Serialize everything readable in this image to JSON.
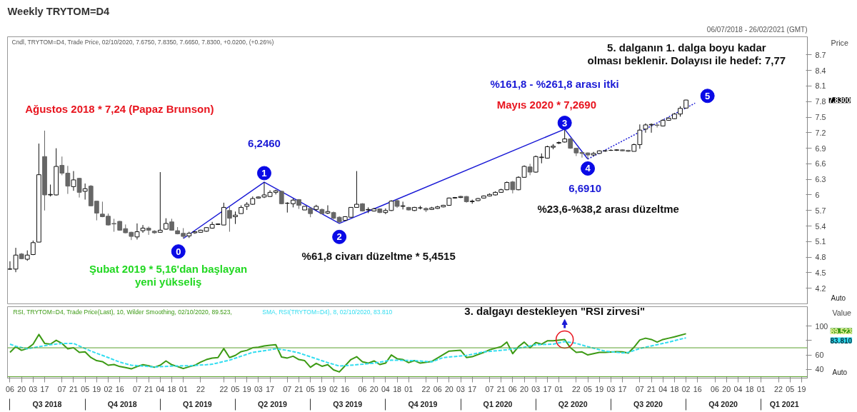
{
  "chart_data": [
    {
      "type": "candlestick",
      "title": "Weekly TRYTOM=D4",
      "subtitle": "Cndl, TRYTOM=D4, Trade Price, 02/10/2020, 7.6750, 7.8350, 7.6650, 7.8300, +0.0200, (+0.26%)",
      "ylabel": "Price",
      "x": [
        "2018-07-06",
        "2018-07-13",
        "2018-07-20",
        "2018-07-27",
        "2018-08-03",
        "2018-08-10",
        "2018-08-17",
        "2018-08-24",
        "2018-08-31",
        "2018-09-07",
        "2018-09-14",
        "2018-09-21",
        "2018-09-28",
        "2018-10-05",
        "2018-10-12",
        "2018-10-19",
        "2018-10-26",
        "2018-11-02",
        "2018-11-09",
        "2018-11-16",
        "2018-11-23",
        "2018-11-30",
        "2018-12-07",
        "2018-12-14",
        "2018-12-21",
        "2018-12-28",
        "2019-01-04",
        "2019-01-11",
        "2019-01-18",
        "2019-01-25",
        "2019-02-01",
        "2019-02-08",
        "2019-02-15",
        "2019-02-22",
        "2019-03-01",
        "2019-03-08",
        "2019-03-15",
        "2019-03-22",
        "2019-03-29",
        "2019-04-05",
        "2019-04-12",
        "2019-04-19",
        "2019-04-26",
        "2019-05-03",
        "2019-05-10",
        "2019-05-17",
        "2019-05-24",
        "2019-05-31",
        "2019-06-07",
        "2019-06-14",
        "2019-06-21",
        "2019-06-28",
        "2019-07-05",
        "2019-07-12",
        "2019-07-19",
        "2019-07-26",
        "2019-08-02",
        "2019-08-09",
        "2019-08-16",
        "2019-08-23",
        "2019-08-30",
        "2019-09-06",
        "2019-09-13",
        "2019-09-20",
        "2019-09-27",
        "2019-10-04",
        "2019-10-11",
        "2019-10-18",
        "2019-10-25",
        "2019-11-01",
        "2019-11-08",
        "2019-11-15",
        "2019-11-22",
        "2019-11-29",
        "2019-12-06",
        "2019-12-13",
        "2019-12-20",
        "2019-12-27",
        "2020-01-03",
        "2020-01-10",
        "2020-01-17",
        "2020-01-24",
        "2020-01-31",
        "2020-02-07",
        "2020-02-14",
        "2020-02-21",
        "2020-02-28",
        "2020-03-06",
        "2020-03-13",
        "2020-03-20",
        "2020-03-27",
        "2020-04-03",
        "2020-04-10",
        "2020-04-17",
        "2020-04-24",
        "2020-05-01",
        "2020-05-08",
        "2020-05-15",
        "2020-05-22",
        "2020-05-29",
        "2020-06-05",
        "2020-06-12",
        "2020-06-19",
        "2020-06-26",
        "2020-07-03",
        "2020-07-10",
        "2020-07-17",
        "2020-07-24",
        "2020-07-31",
        "2020-08-07",
        "2020-08-14",
        "2020-08-21",
        "2020-08-28",
        "2020-09-04",
        "2020-09-11",
        "2020-09-18",
        "2020-09-25",
        "2020-10-02"
      ],
      "ohlc": [
        [
          4.57,
          4.72,
          4.56,
          4.57
        ],
        [
          4.57,
          4.98,
          4.51,
          4.84
        ],
        [
          4.86,
          4.88,
          4.76,
          4.77
        ],
        [
          4.76,
          4.93,
          4.73,
          4.84
        ],
        [
          4.85,
          5.12,
          4.84,
          5.08
        ],
        [
          5.09,
          6.99,
          5.09,
          6.39
        ],
        [
          6.74,
          7.24,
          5.7,
          6.0
        ],
        [
          6.0,
          6.2,
          5.97,
          6.01
        ],
        [
          6.0,
          6.9,
          5.99,
          6.55
        ],
        [
          6.57,
          6.74,
          6.38,
          6.42
        ],
        [
          6.42,
          6.56,
          6.02,
          6.17
        ],
        [
          6.16,
          6.46,
          6.08,
          6.29
        ],
        [
          6.32,
          6.33,
          5.95,
          6.05
        ],
        [
          6.07,
          6.22,
          5.91,
          6.12
        ],
        [
          6.17,
          6.19,
          5.78,
          5.79
        ],
        [
          5.88,
          5.88,
          5.51,
          5.65
        ],
        [
          5.63,
          5.87,
          5.57,
          5.58
        ],
        [
          5.59,
          5.64,
          5.41,
          5.42
        ],
        [
          5.45,
          5.54,
          5.29,
          5.44
        ],
        [
          5.49,
          5.5,
          5.31,
          5.32
        ],
        [
          5.35,
          5.43,
          5.26,
          5.27
        ],
        [
          5.28,
          5.29,
          5.13,
          5.2
        ],
        [
          5.19,
          5.45,
          5.14,
          5.29
        ],
        [
          5.31,
          5.42,
          5.27,
          5.36
        ],
        [
          5.36,
          5.39,
          5.23,
          5.32
        ],
        [
          5.3,
          5.32,
          5.25,
          5.27
        ],
        [
          5.28,
          6.44,
          5.27,
          5.32
        ],
        [
          5.34,
          5.55,
          5.33,
          5.45
        ],
        [
          5.48,
          5.54,
          5.31,
          5.32
        ],
        [
          5.31,
          5.38,
          5.24,
          5.25
        ],
        [
          5.26,
          5.36,
          5.16,
          5.2
        ],
        [
          5.21,
          5.29,
          5.17,
          5.26
        ],
        [
          5.27,
          5.3,
          5.25,
          5.29
        ],
        [
          5.28,
          5.33,
          5.27,
          5.32
        ],
        [
          5.3,
          5.38,
          5.29,
          5.37
        ],
        [
          5.36,
          5.48,
          5.35,
          5.43
        ],
        [
          5.43,
          5.45,
          5.42,
          5.44
        ],
        [
          5.42,
          5.85,
          5.42,
          5.76
        ],
        [
          5.7,
          5.78,
          5.29,
          5.55
        ],
        [
          5.58,
          5.68,
          5.44,
          5.61
        ],
        [
          5.64,
          5.8,
          5.64,
          5.76
        ],
        [
          5.78,
          5.86,
          5.71,
          5.82
        ],
        [
          5.82,
          5.97,
          5.81,
          5.93
        ],
        [
          5.94,
          5.97,
          5.93,
          5.96
        ],
        [
          5.96,
          6.246,
          5.94,
          6.0
        ],
        [
          5.97,
          6.09,
          5.96,
          6.05
        ],
        [
          6.05,
          6.1,
          6.01,
          6.08
        ],
        [
          6.07,
          6.08,
          5.82,
          5.83
        ],
        [
          5.84,
          5.86,
          5.66,
          5.84
        ],
        [
          5.83,
          5.93,
          5.76,
          5.9
        ],
        [
          5.91,
          5.92,
          5.73,
          5.8
        ],
        [
          5.71,
          5.78,
          5.71,
          5.78
        ],
        [
          5.74,
          5.76,
          5.57,
          5.64
        ],
        [
          5.72,
          5.81,
          5.69,
          5.78
        ],
        [
          5.72,
          5.74,
          5.63,
          5.64
        ],
        [
          5.65,
          5.8,
          5.63,
          5.68
        ],
        [
          5.66,
          5.68,
          5.53,
          5.55
        ],
        [
          5.57,
          5.59,
          5.4515,
          5.48
        ],
        [
          5.51,
          5.59,
          5.5,
          5.58
        ],
        [
          5.57,
          5.76,
          5.56,
          5.76
        ],
        [
          5.76,
          6.46,
          5.76,
          5.82
        ],
        [
          5.83,
          5.84,
          5.68,
          5.69
        ],
        [
          5.71,
          5.76,
          5.65,
          5.72
        ],
        [
          5.69,
          5.75,
          5.68,
          5.73
        ],
        [
          5.73,
          5.74,
          5.65,
          5.66
        ],
        [
          5.66,
          5.74,
          5.63,
          5.7
        ],
        [
          5.7,
          5.9,
          5.69,
          5.88
        ],
        [
          5.89,
          5.91,
          5.75,
          5.78
        ],
        [
          5.78,
          5.87,
          5.72,
          5.79
        ],
        [
          5.76,
          5.77,
          5.7,
          5.71
        ],
        [
          5.7,
          5.77,
          5.69,
          5.76
        ],
        [
          5.75,
          5.79,
          5.72,
          5.75
        ],
        [
          5.74,
          5.76,
          5.67,
          5.71
        ],
        [
          5.72,
          5.77,
          5.71,
          5.75
        ],
        [
          5.74,
          5.79,
          5.73,
          5.77
        ],
        [
          5.77,
          5.81,
          5.76,
          5.8
        ],
        [
          5.8,
          5.95,
          5.79,
          5.94
        ],
        [
          5.94,
          5.96,
          5.93,
          5.95
        ],
        [
          5.95,
          5.98,
          5.94,
          5.97
        ],
        [
          5.97,
          5.98,
          5.85,
          5.87
        ],
        [
          5.87,
          5.91,
          5.83,
          5.88
        ],
        [
          5.89,
          5.94,
          5.88,
          5.93
        ],
        [
          5.94,
          5.99,
          5.93,
          5.98
        ],
        [
          5.98,
          6.03,
          5.97,
          6.01
        ],
        [
          6.0,
          6.07,
          5.99,
          6.05
        ],
        [
          6.05,
          6.12,
          6.04,
          6.1
        ],
        [
          6.1,
          6.26,
          6.09,
          6.24
        ],
        [
          6.25,
          6.27,
          6.03,
          6.1
        ],
        [
          6.1,
          6.36,
          6.09,
          6.34
        ],
        [
          6.34,
          6.57,
          6.33,
          6.55
        ],
        [
          6.54,
          6.6,
          6.38,
          6.44
        ],
        [
          6.44,
          6.76,
          6.43,
          6.74
        ],
        [
          6.72,
          6.8,
          6.61,
          6.73
        ],
        [
          6.71,
          6.95,
          6.7,
          6.93
        ],
        [
          6.92,
          6.98,
          6.88,
          6.94
        ],
        [
          7.0,
          7.03,
          6.98,
          7.01
        ],
        [
          7.02,
          7.269,
          7.01,
          7.08
        ],
        [
          7.08,
          7.1,
          6.89,
          6.9
        ],
        [
          6.9,
          6.91,
          6.75,
          6.81
        ],
        [
          6.82,
          6.83,
          6.72,
          6.8
        ],
        [
          6.81,
          6.82,
          6.691,
          6.77
        ],
        [
          6.77,
          6.83,
          6.75,
          6.8
        ],
        [
          6.8,
          6.86,
          6.79,
          6.85
        ],
        [
          6.85,
          6.87,
          6.83,
          6.85
        ],
        [
          6.86,
          6.88,
          6.85,
          6.86
        ],
        [
          6.86,
          6.88,
          6.85,
          6.87
        ],
        [
          6.87,
          6.88,
          6.84,
          6.85
        ],
        [
          6.86,
          6.87,
          6.83,
          6.84
        ],
        [
          6.84,
          6.99,
          6.84,
          6.97
        ],
        [
          6.97,
          7.36,
          6.89,
          7.25
        ],
        [
          7.27,
          7.38,
          7.2,
          7.35
        ],
        [
          7.35,
          7.38,
          7.2,
          7.36
        ],
        [
          7.35,
          7.37,
          7.3,
          7.34
        ],
        [
          7.33,
          7.46,
          7.32,
          7.44
        ],
        [
          7.44,
          7.5,
          7.43,
          7.48
        ],
        [
          7.47,
          7.58,
          7.46,
          7.56
        ],
        [
          7.56,
          7.71,
          7.51,
          7.67
        ],
        [
          7.675,
          7.835,
          7.665,
          7.83
        ]
      ],
      "series": [
        {
          "type": "line",
          "color": "#1a1ad6",
          "line_style": "solid",
          "x": [
            "2019-02-01",
            "2019-05-10",
            "2019-08-09",
            "2020-05-08",
            "2020-06-05"
          ],
          "values": [
            5.16,
            6.246,
            5.4515,
            7.269,
            6.691
          ]
        },
        {
          "type": "line",
          "color": "#1a1ad6",
          "line_style": "dotted",
          "x": [
            "2020-06-05",
            "2020-10-13"
          ],
          "values": [
            6.691,
            7.77
          ]
        }
      ],
      "xlim": [
        "2018-07-03",
        "2021-02-26"
      ],
      "ylim": [
        3.9,
        9.05
      ],
      "yticks": [
        4.2,
        4.5,
        4.8,
        5.1,
        5.4,
        5.7,
        6,
        6.3,
        6.6,
        6.9,
        7.2,
        7.5,
        7.8,
        8.1,
        8.4,
        8.7
      ],
      "tick_labels": "y",
      "marker": "none",
      "annotations": [
        "Ağustos 2018 * 7,24 (Papaz Brunson)",
        "6,2460",
        "Şubat 2019 * 5,16'dan başlayan\nyeni yükseliş",
        "%61,8 civarı düzeltme * 5,4515",
        "%161,8 - %261,8 arası itki",
        "Mayıs 2020 * 7,2690",
        "6,6910",
        "%23,6-%38,2 arası düzeltme",
        "5. dalganın 1. dalga boyu kadar\nolması beklenir. Dolayısı ile hedef: 7,77",
        {
          "text": "0",
          "x": "2019-01-26",
          "y": 4.91
        },
        {
          "text": "1",
          "x": "2019-05-10",
          "y": 6.42
        },
        {
          "text": "2",
          "x": "2019-08-09",
          "y": 5.19
        },
        {
          "text": "3",
          "x": "2020-05-08",
          "y": 7.39
        },
        {
          "text": "4",
          "x": "2020-06-05",
          "y": 6.51
        },
        {
          "text": "5",
          "x": "2020-10-28",
          "y": 7.91
        },
        "7.8300",
        "06/07/2018 - 26/02/2021 (GMT)",
        "Auto"
      ]
    },
    {
      "type": "line",
      "ylabel": "Value",
      "legend": "top left",
      "marker": "none",
      "series": [
        {
          "name": "RSI, TRYTOM=D4, Trade Price(Last),  10, Wilder Smoothing, 02/10/2020, 89.523,",
          "color": "#3c9a14",
          "line_style": "solid",
          "x": [
            "2018-07-06",
            "2018-07-13",
            "2018-07-20",
            "2018-07-27",
            "2018-08-03",
            "2018-08-10",
            "2018-08-17",
            "2018-08-24",
            "2018-08-31",
            "2018-09-07",
            "2018-09-14",
            "2018-09-21",
            "2018-09-28",
            "2018-10-05",
            "2018-10-12",
            "2018-10-19",
            "2018-10-26",
            "2018-11-02",
            "2018-11-09",
            "2018-11-16",
            "2018-11-23",
            "2018-11-30",
            "2018-12-07",
            "2018-12-14",
            "2018-12-21",
            "2018-12-28",
            "2019-01-04",
            "2019-01-11",
            "2019-01-18",
            "2019-01-25",
            "2019-02-01",
            "2019-02-08",
            "2019-02-15",
            "2019-02-22",
            "2019-03-01",
            "2019-03-08",
            "2019-03-15",
            "2019-03-22",
            "2019-03-29",
            "2019-04-05",
            "2019-04-12",
            "2019-04-19",
            "2019-04-26",
            "2019-05-03",
            "2019-05-10",
            "2019-05-17",
            "2019-05-24",
            "2019-05-31",
            "2019-06-07",
            "2019-06-14",
            "2019-06-21",
            "2019-06-28",
            "2019-07-05",
            "2019-07-12",
            "2019-07-19",
            "2019-07-26",
            "2019-08-02",
            "2019-08-09",
            "2019-08-16",
            "2019-08-23",
            "2019-08-30",
            "2019-09-06",
            "2019-09-13",
            "2019-09-20",
            "2019-09-27",
            "2019-10-04",
            "2019-10-11",
            "2019-10-18",
            "2019-10-25",
            "2019-11-01",
            "2019-11-08",
            "2019-11-15",
            "2019-11-29",
            "2019-12-06",
            "2019-12-20",
            "2020-01-03",
            "2020-01-10",
            "2020-01-17",
            "2020-01-31",
            "2020-02-07",
            "2020-02-21",
            "2020-02-28",
            "2020-03-06",
            "2020-03-13",
            "2020-03-20",
            "2020-03-27",
            "2020-04-03",
            "2020-04-10",
            "2020-04-17",
            "2020-04-24",
            "2020-05-08",
            "2020-05-15",
            "2020-05-22",
            "2020-05-29",
            "2020-06-05",
            "2020-06-12",
            "2020-06-19",
            "2020-06-26",
            "2020-07-10",
            "2020-07-17",
            "2020-07-24",
            "2020-07-31",
            "2020-08-07",
            "2020-08-14",
            "2020-08-21",
            "2020-08-28",
            "2020-09-04",
            "2020-09-11",
            "2020-09-18",
            "2020-10-02"
          ],
          "values": [
            63.6,
            71.5,
            66.5,
            69.0,
            75.0,
            88.5,
            76.1,
            75.0,
            80.4,
            76.1,
            68.6,
            70.0,
            63.6,
            64.3,
            56.5,
            52.2,
            50.8,
            45.8,
            46.8,
            44.0,
            42.6,
            40.8,
            44.0,
            46.5,
            45.1,
            43.0,
            45.8,
            51.8,
            46.5,
            44.0,
            41.2,
            43.7,
            45.8,
            50.1,
            53.7,
            55.8,
            56.5,
            69.0,
            56.5,
            59.4,
            64.7,
            66.5,
            70.0,
            70.8,
            72.5,
            73.6,
            74.3,
            57.2,
            55.8,
            58.3,
            53.7,
            52.2,
            43.0,
            48.4,
            44.4,
            46.5,
            39.4,
            36.5,
            45.1,
            53.7,
            57.6,
            50.5,
            48.7,
            51.8,
            46.8,
            48.7,
            60.1,
            54.8,
            53.7,
            49.4,
            52.2,
            48.7,
            51.1,
            55.8,
            65.4,
            66.5,
            56.5,
            57.6,
            63.6,
            67.2,
            71.5,
            77.9,
            61.9,
            71.5,
            77.9,
            70.0,
            77.2,
            75.0,
            79.7,
            79.7,
            81.5,
            70.0,
            63.6,
            64.3,
            60.1,
            61.9,
            63.6,
            63.6,
            64.7,
            64.3,
            62.6,
            70.8,
            80.8,
            83.3,
            81.5,
            77.9,
            81.5,
            83.3,
            85.1,
            89.523
          ]
        },
        {
          "name": "SMA, RSI(TRYTOM=D4),  8, 02/10/2020, 83.810",
          "color": "#33ddf0",
          "line_style": "dashed",
          "x": [
            "2018-07-06",
            "2018-07-13",
            "2018-07-27",
            "2018-08-10",
            "2018-08-24",
            "2018-09-07",
            "2018-09-21",
            "2018-09-28",
            "2018-10-12",
            "2018-11-02",
            "2018-11-16",
            "2018-11-30",
            "2018-12-14",
            "2018-12-28",
            "2019-01-18",
            "2019-02-08",
            "2019-03-01",
            "2019-03-08",
            "2019-03-29",
            "2019-04-12",
            "2019-04-26",
            "2019-05-17",
            "2019-05-24",
            "2019-06-07",
            "2019-06-21",
            "2019-07-12",
            "2019-07-26",
            "2019-08-09",
            "2019-08-30",
            "2019-09-20",
            "2019-10-11",
            "2019-11-08",
            "2019-11-29",
            "2019-12-13",
            "2020-01-10",
            "2020-01-31",
            "2020-02-28",
            "2020-03-20",
            "2020-04-03",
            "2020-04-24",
            "2020-05-08",
            "2020-05-22",
            "2020-06-05",
            "2020-06-26",
            "2020-07-17",
            "2020-07-24",
            "2020-08-07",
            "2020-08-28",
            "2020-09-11",
            "2020-10-02"
          ],
          "values": [
            75.0,
            72.2,
            68.6,
            71.5,
            74.3,
            76.1,
            76.1,
            72.5,
            65.4,
            56.5,
            50.1,
            45.8,
            44.7,
            43.3,
            44.7,
            45.1,
            46.5,
            47.2,
            52.9,
            58.3,
            63.6,
            67.2,
            68.6,
            66.5,
            62.9,
            54.8,
            49.4,
            44.7,
            46.5,
            48.7,
            52.9,
            52.2,
            50.5,
            56.5,
            59.4,
            64.3,
            67.2,
            70.8,
            74.3,
            75.0,
            78.6,
            76.1,
            71.5,
            65.4,
            62.9,
            63.6,
            69.0,
            74.3,
            77.9,
            83.81
          ]
        }
      ],
      "ref_lines": [
        {
          "axis": "y",
          "value": 70,
          "color": "#5aa02c"
        },
        {
          "axis": "y",
          "value": 30,
          "color": "#5aa02c"
        }
      ],
      "xlim": [
        "2018-07-03",
        "2021-02-26"
      ],
      "ylim": [
        28,
        127
      ],
      "yticks": [
        40,
        60,
        {
          "value": 80,
          "label": null
        },
        100
      ],
      "xticks": [
        {
          "value": "2018-07-06",
          "label": "06"
        },
        {
          "value": "2018-07-20",
          "label": "20"
        },
        {
          "value": "2018-08-03",
          "label": "03"
        },
        {
          "value": "2018-08-17",
          "label": "17"
        },
        {
          "value": "2018-09-07",
          "label": "07"
        },
        {
          "value": "2018-09-21",
          "label": "21"
        },
        {
          "value": "2018-10-05",
          "label": "05"
        },
        {
          "value": "2018-10-19",
          "label": "19"
        },
        {
          "value": "2018-11-02",
          "label": "02"
        },
        {
          "value": "2018-11-16",
          "label": "16"
        },
        {
          "value": "2018-12-07",
          "label": "07"
        },
        {
          "value": "2018-12-21",
          "label": "21"
        },
        {
          "value": "2019-01-04",
          "label": "04"
        },
        {
          "value": "2019-01-18",
          "label": "18"
        },
        {
          "value": "2019-02-01",
          "label": "01"
        },
        {
          "value": "2019-02-22",
          "label": "22"
        },
        {
          "value": "2019-03-22",
          "label": "22"
        },
        {
          "value": "2019-04-05",
          "label": "05"
        },
        {
          "value": "2019-04-19",
          "label": "19"
        },
        {
          "value": "2019-05-03",
          "label": "03"
        },
        {
          "value": "2019-05-17",
          "label": "17"
        },
        {
          "value": "2019-06-07",
          "label": "07"
        },
        {
          "value": "2019-06-21",
          "label": "21"
        },
        {
          "value": "2019-07-05",
          "label": "05"
        },
        {
          "value": "2019-07-19",
          "label": "19"
        },
        {
          "value": "2019-08-02",
          "label": "02"
        },
        {
          "value": "2019-08-16",
          "label": "16"
        },
        {
          "value": "2019-09-06",
          "label": "06"
        },
        {
          "value": "2019-09-20",
          "label": "20"
        },
        {
          "value": "2019-10-04",
          "label": "04"
        },
        {
          "value": "2019-10-18",
          "label": "18"
        },
        {
          "value": "2019-11-01",
          "label": "01"
        },
        {
          "value": "2019-11-22",
          "label": "22"
        },
        {
          "value": "2019-12-06",
          "label": "06"
        },
        {
          "value": "2019-12-20",
          "label": "20"
        },
        {
          "value": "2020-01-03",
          "label": "03"
        },
        {
          "value": "2020-01-17",
          "label": "17"
        },
        {
          "value": "2020-02-07",
          "label": "07"
        },
        {
          "value": "2020-02-21",
          "label": "21"
        },
        {
          "value": "2020-03-06",
          "label": "06"
        },
        {
          "value": "2020-03-20",
          "label": "20"
        },
        {
          "value": "2020-04-03",
          "label": "03"
        },
        {
          "value": "2020-04-17",
          "label": "17"
        },
        {
          "value": "2020-05-01",
          "label": "01"
        },
        {
          "value": "2020-05-22",
          "label": "22"
        },
        {
          "value": "2020-06-05",
          "label": "05"
        },
        {
          "value": "2020-06-19",
          "label": "19"
        },
        {
          "value": "2020-07-03",
          "label": "03"
        },
        {
          "value": "2020-07-17",
          "label": "17"
        },
        {
          "value": "2020-08-07",
          "label": "07"
        },
        {
          "value": "2020-08-21",
          "label": "21"
        },
        {
          "value": "2020-09-04",
          "label": "04"
        },
        {
          "value": "2020-09-18",
          "label": "18"
        },
        {
          "value": "2020-10-02",
          "label": "02"
        },
        {
          "value": "2020-10-16",
          "label": "16"
        },
        {
          "value": "2020-11-06",
          "label": "06"
        },
        {
          "value": "2020-11-20",
          "label": "20"
        },
        {
          "value": "2020-12-04",
          "label": "04"
        },
        {
          "value": "2020-12-18",
          "label": "18"
        },
        {
          "value": "2021-01-01",
          "label": "01"
        },
        {
          "value": "2021-01-22",
          "label": "22"
        },
        {
          "value": "2021-02-05",
          "label": "05"
        },
        {
          "value": "2021-02-19",
          "label": "19"
        }
      ],
      "x2lim": [
        "2018-07-03",
        "2021-02-26"
      ],
      "x2ticks": [
        {
          "value": "2018-07-06",
          "label": null
        },
        {
          "value": "2018-08-20",
          "label": "Q3 2018"
        },
        {
          "value": "2018-10-05",
          "label": null
        },
        {
          "value": "2018-11-19",
          "label": "Q4 2018"
        },
        {
          "value": "2019-01-04",
          "label": null
        },
        {
          "value": "2019-02-18",
          "label": "Q1 2019"
        },
        {
          "value": "2019-04-05",
          "label": null
        },
        {
          "value": "2019-05-20",
          "label": "Q2 2019"
        },
        {
          "value": "2019-07-05",
          "label": null
        },
        {
          "value": "2019-08-19",
          "label": "Q3 2019"
        },
        {
          "value": "2019-10-04",
          "label": null
        },
        {
          "value": "2019-11-18",
          "label": "Q4 2019"
        },
        {
          "value": "2020-01-03",
          "label": null
        },
        {
          "value": "2020-02-17",
          "label": "Q1 2020"
        },
        {
          "value": "2020-04-03",
          "label": null
        },
        {
          "value": "2020-05-18",
          "label": "Q2 2020"
        },
        {
          "value": "2020-07-03",
          "label": null
        },
        {
          "value": "2020-08-17",
          "label": "Q3 2020"
        },
        {
          "value": "2020-10-02",
          "label": null
        },
        {
          "value": "2020-11-16",
          "label": "Q4 2020"
        },
        {
          "value": "2021-01-01",
          "label": null
        },
        {
          "value": "2021-01-29",
          "label": "Q1 2021"
        }
      ],
      "annotations": [
        {
          "text": "3. dalgayı destekleyen \"RSI zirvesi\"",
          "x": "2020-05-08",
          "y": 81.5
        },
        "89.523",
        "83.810",
        "Auto"
      ]
    }
  ]
}
